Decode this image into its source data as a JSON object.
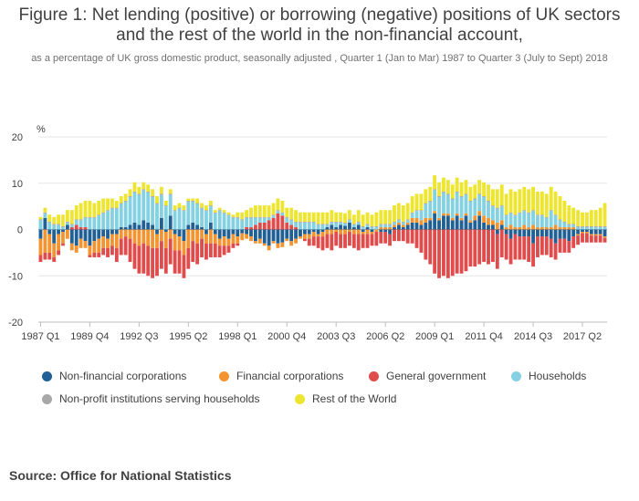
{
  "title": "Figure 1: Net lending (positive) or borrowing (negative) positions of UK sectors and the rest of the world in the non-financial account,",
  "subtitle": "as a percentage of UK gross domestic product, seasonally adjusted , Quarter 1 (Jan to Mar) 1987 to Quarter 3 (July to Sept) 2018",
  "source": "Source: Office for National Statistics",
  "chart_data": {
    "type": "bar",
    "stacked": true,
    "ylabel": "%",
    "ylim": [
      -20,
      20
    ],
    "yticks": [
      20,
      10,
      0,
      -10,
      -20
    ],
    "grid": true,
    "legend_position": "bottom",
    "xticks": [
      "1987 Q1",
      "1989 Q4",
      "1992 Q3",
      "1995 Q2",
      "1998 Q1",
      "2000 Q4",
      "2003 Q3",
      "2006 Q2",
      "2009 Q1",
      "2011 Q4",
      "2014 Q3",
      "2017 Q2"
    ],
    "categories": [
      "1987 Q1",
      "1987 Q2",
      "1987 Q3",
      "1987 Q4",
      "1988 Q1",
      "1988 Q2",
      "1988 Q3",
      "1988 Q4",
      "1989 Q1",
      "1989 Q2",
      "1989 Q3",
      "1989 Q4",
      "1990 Q1",
      "1990 Q2",
      "1990 Q3",
      "1990 Q4",
      "1991 Q1",
      "1991 Q2",
      "1991 Q3",
      "1991 Q4",
      "1992 Q1",
      "1992 Q2",
      "1992 Q3",
      "1992 Q4",
      "1993 Q1",
      "1993 Q2",
      "1993 Q3",
      "1993 Q4",
      "1994 Q1",
      "1994 Q2",
      "1994 Q3",
      "1994 Q4",
      "1995 Q1",
      "1995 Q2",
      "1995 Q3",
      "1995 Q4",
      "1996 Q1",
      "1996 Q2",
      "1996 Q3",
      "1996 Q4",
      "1997 Q1",
      "1997 Q2",
      "1997 Q3",
      "1997 Q4",
      "1998 Q1",
      "1998 Q2",
      "1998 Q3",
      "1998 Q4",
      "1999 Q1",
      "1999 Q2",
      "1999 Q3",
      "1999 Q4",
      "2000 Q1",
      "2000 Q2",
      "2000 Q3",
      "2000 Q4",
      "2001 Q1",
      "2001 Q2",
      "2001 Q3",
      "2001 Q4",
      "2002 Q1",
      "2002 Q2",
      "2002 Q3",
      "2002 Q4",
      "2003 Q1",
      "2003 Q2",
      "2003 Q3",
      "2003 Q4",
      "2004 Q1",
      "2004 Q2",
      "2004 Q3",
      "2004 Q4",
      "2005 Q1",
      "2005 Q2",
      "2005 Q3",
      "2005 Q4",
      "2006 Q1",
      "2006 Q2",
      "2006 Q3",
      "2006 Q4",
      "2007 Q1",
      "2007 Q2",
      "2007 Q3",
      "2007 Q4",
      "2008 Q1",
      "2008 Q2",
      "2008 Q3",
      "2008 Q4",
      "2009 Q1",
      "2009 Q2",
      "2009 Q3",
      "2009 Q4",
      "2010 Q1",
      "2010 Q2",
      "2010 Q3",
      "2010 Q4",
      "2011 Q1",
      "2011 Q2",
      "2011 Q3",
      "2011 Q4",
      "2012 Q1",
      "2012 Q2",
      "2012 Q3",
      "2012 Q4",
      "2013 Q1",
      "2013 Q2",
      "2013 Q3",
      "2013 Q4",
      "2014 Q1",
      "2014 Q2",
      "2014 Q3",
      "2014 Q4",
      "2015 Q1",
      "2015 Q2",
      "2015 Q3",
      "2015 Q4",
      "2016 Q1",
      "2016 Q2",
      "2016 Q3",
      "2016 Q4",
      "2017 Q1",
      "2017 Q2",
      "2017 Q3",
      "2017 Q4",
      "2018 Q1",
      "2018 Q2",
      "2018 Q3"
    ],
    "series": [
      {
        "name": "Non-financial corporations",
        "color": "#206095",
        "values": [
          -2.0,
          2.5,
          -1.0,
          -3.0,
          -1.0,
          -0.5,
          1.0,
          -3.0,
          -3.5,
          -2.0,
          -2.5,
          -3.5,
          -2.5,
          -2.0,
          -1.5,
          -2.0,
          -1.0,
          -1.0,
          0.5,
          0.5,
          1.0,
          1.5,
          1.0,
          2.0,
          1.5,
          1.0,
          -1.0,
          2.5,
          -0.5,
          3.0,
          -1.0,
          -1.5,
          -2.5,
          1.0,
          1.5,
          1.0,
          0.5,
          -1.0,
          1.5,
          -1.0,
          -2.0,
          -1.5,
          -2.0,
          -1.0,
          -1.5,
          -0.8,
          -1.0,
          -1.5,
          -2.5,
          -2.0,
          -3.0,
          -3.5,
          -2.5,
          -3.0,
          -2.8,
          -2.0,
          -2.5,
          -2.0,
          -1.5,
          -1.0,
          -1.0,
          -0.5,
          -1.0,
          -0.5,
          0.5,
          1.0,
          0.5,
          1.0,
          0.8,
          1.5,
          0.5,
          1.0,
          -0.5,
          0.5,
          -0.5,
          0.0,
          -0.5,
          -0.5,
          -1.0,
          0.5,
          1.0,
          0.5,
          1.0,
          1.5,
          1.5,
          1.0,
          1.5,
          2.0,
          3.5,
          2.0,
          3.0,
          3.0,
          2.0,
          3.0,
          2.0,
          3.0,
          1.5,
          2.0,
          3.0,
          1.5,
          1.0,
          1.0,
          -1.0,
          1.0,
          -1.0,
          -2.0,
          -1.0,
          -1.5,
          -1.5,
          -1.5,
          -3.0,
          -1.5,
          -1.5,
          -1.5,
          -2.0,
          -3.0,
          -2.0,
          -2.0,
          -2.5,
          -1.5,
          -1.0,
          -0.5,
          -0.5,
          -1.0,
          -1.0,
          -1.0,
          -1.5
        ]
      },
      {
        "name": "Financial corporations",
        "color": "#f39431",
        "values": [
          -3.5,
          -5.0,
          -4.0,
          -3.0,
          -3.5,
          -2.5,
          -2.0,
          -1.5,
          -1.5,
          -2.0,
          -1.5,
          -2.0,
          -2.5,
          -3.0,
          -2.5,
          -2.0,
          -2.5,
          -3.0,
          -2.0,
          -1.5,
          -2.0,
          -3.0,
          -3.5,
          -3.0,
          -3.5,
          -4.0,
          -3.0,
          -2.5,
          -3.5,
          -2.0,
          -3.5,
          -3.0,
          -3.0,
          -4.0,
          -2.5,
          -3.0,
          -2.0,
          -2.0,
          -3.0,
          -2.0,
          -1.5,
          -2.0,
          -1.5,
          -2.0,
          -1.5,
          -1.5,
          -1.0,
          -1.0,
          -0.5,
          -1.0,
          -0.5,
          -1.0,
          -0.5,
          -1.0,
          -1.0,
          -0.5,
          -1.0,
          -1.0,
          -0.5,
          -1.0,
          -1.0,
          -1.0,
          -0.5,
          -1.0,
          -1.0,
          -1.0,
          -0.5,
          -1.0,
          -1.0,
          -0.5,
          -1.0,
          -1.0,
          -0.5,
          -1.0,
          -0.5,
          -0.5,
          0.5,
          0.5,
          0.5,
          0.5,
          0.5,
          0.5,
          0.5,
          1.0,
          1.0,
          1.0,
          1.0,
          0.5,
          0.5,
          0.5,
          0.5,
          0.5,
          0.5,
          0.5,
          0.5,
          0.5,
          0.5,
          1.0,
          1.0,
          1.5,
          1.5,
          1.0,
          1.5,
          1.0,
          0.5,
          1.0,
          0.5,
          0.5,
          1.0,
          0.5,
          1.0,
          0.5,
          0.5,
          0.5,
          0.5,
          1.0,
          0.5,
          0.5,
          0.5,
          0.5,
          -0.3,
          -0.3,
          -0.3,
          -0.3,
          -0.3,
          -0.3,
          -0.3
        ]
      },
      {
        "name": "General government",
        "color": "#e04b4b",
        "values": [
          -1.5,
          -1.5,
          -1.5,
          -1.0,
          -1.0,
          -0.5,
          0.0,
          0.5,
          1.0,
          0.5,
          0.5,
          -0.5,
          -1.0,
          -1.0,
          -1.5,
          -2.0,
          -2.0,
          -3.0,
          -3.5,
          -4.0,
          -5.0,
          -5.5,
          -6.0,
          -6.5,
          -6.5,
          -6.5,
          -6.0,
          -6.0,
          -5.5,
          -5.5,
          -5.0,
          -5.0,
          -5.0,
          -4.5,
          -4.5,
          -4.5,
          -4.0,
          -3.5,
          -3.0,
          -3.0,
          -2.5,
          -2.0,
          -1.5,
          -1.0,
          -0.5,
          0.0,
          0.5,
          0.5,
          1.0,
          1.5,
          1.5,
          2.0,
          2.5,
          3.5,
          3.0,
          1.5,
          1.0,
          0.5,
          0.0,
          -0.5,
          -1.5,
          -2.0,
          -2.5,
          -3.0,
          -3.0,
          -3.5,
          -3.0,
          -3.0,
          -3.0,
          -3.0,
          -3.0,
          -3.5,
          -3.0,
          -3.0,
          -2.5,
          -3.0,
          -2.5,
          -2.5,
          -2.5,
          -2.5,
          -2.5,
          -2.5,
          -3.0,
          -3.0,
          -4.0,
          -5.0,
          -6.5,
          -7.5,
          -9.5,
          -10.5,
          -10.0,
          -10.5,
          -10.0,
          -9.5,
          -9.5,
          -9.0,
          -8.0,
          -8.0,
          -7.5,
          -7.0,
          -7.5,
          -7.0,
          -7.5,
          -6.0,
          -5.5,
          -5.5,
          -5.5,
          -5.0,
          -5.0,
          -5.5,
          -5.0,
          -4.5,
          -4.0,
          -4.0,
          -4.0,
          -3.5,
          -3.0,
          -3.0,
          -2.5,
          -2.5,
          -2.0,
          -2.0,
          -2.0,
          -1.5,
          -1.5,
          -1.5,
          -1.0
        ]
      },
      {
        "name": "Households",
        "color": "#84d1e2",
        "values": [
          2.0,
          1.0,
          1.5,
          1.0,
          1.0,
          0.5,
          0.5,
          0.5,
          1.0,
          1.5,
          2.0,
          2.5,
          2.5,
          3.0,
          3.5,
          4.0,
          4.5,
          4.5,
          5.0,
          5.5,
          6.0,
          6.5,
          6.5,
          6.5,
          6.5,
          6.0,
          5.5,
          5.0,
          5.0,
          4.5,
          4.0,
          4.5,
          4.0,
          5.0,
          4.5,
          4.5,
          4.0,
          4.0,
          3.5,
          3.5,
          4.0,
          3.5,
          3.0,
          2.5,
          2.5,
          2.0,
          2.0,
          2.0,
          1.5,
          1.0,
          1.0,
          0.5,
          0.5,
          0.5,
          0.5,
          1.0,
          1.0,
          1.0,
          1.5,
          1.5,
          1.5,
          1.5,
          1.0,
          1.0,
          0.5,
          0.5,
          1.0,
          0.5,
          0.5,
          0.5,
          0.5,
          0.5,
          0.5,
          0.5,
          0.5,
          0.5,
          0.5,
          0.5,
          0.5,
          0.5,
          0.5,
          0.5,
          0.5,
          1.0,
          1.5,
          2.0,
          3.0,
          3.5,
          4.5,
          4.5,
          4.5,
          4.0,
          4.0,
          4.5,
          4.5,
          4.0,
          4.0,
          3.5,
          3.5,
          4.0,
          3.5,
          3.0,
          3.0,
          3.0,
          2.5,
          2.5,
          2.5,
          3.0,
          3.0,
          3.0,
          3.0,
          2.5,
          2.5,
          2.0,
          3.5,
          2.0,
          1.5,
          1.0,
          0.5,
          0.5,
          0.5,
          0.5,
          0.5,
          0.5,
          0.5,
          0.5,
          0.5
        ]
      },
      {
        "name": "Non-profit institutions serving households",
        "color": "#a8a8a8",
        "values": [
          0.2,
          0.2,
          0.2,
          0.2,
          0.2,
          0.2,
          0.2,
          0.2,
          0.2,
          0.2,
          0.2,
          0.2,
          0.2,
          0.2,
          0.2,
          0.2,
          0.2,
          0.2,
          0.2,
          0.2,
          0.2,
          0.2,
          0.2,
          0.2,
          0.2,
          0.2,
          0.2,
          0.2,
          0.2,
          0.2,
          0.2,
          0.2,
          0.2,
          0.2,
          0.2,
          0.2,
          0.2,
          0.2,
          0.2,
          0.2,
          0.2,
          0.2,
          0.2,
          0.2,
          0.2,
          0.2,
          0.2,
          0.2,
          0.2,
          0.2,
          0.2,
          0.2,
          0.2,
          0.2,
          0.2,
          0.2,
          0.2,
          0.2,
          0.2,
          0.2,
          0.2,
          0.2,
          0.2,
          0.2,
          0.2,
          0.2,
          0.2,
          0.2,
          0.2,
          0.2,
          0.2,
          0.2,
          0.2,
          0.2,
          0.2,
          0.2,
          0.2,
          0.2,
          0.2,
          0.2,
          0.2,
          0.2,
          0.2,
          0.2,
          0.2,
          0.2,
          0.2,
          0.2,
          0.2,
          0.2,
          0.2,
          0.2,
          0.2,
          0.2,
          0.2,
          0.2,
          0.2,
          0.2,
          0.2,
          0.2,
          0.2,
          0.2,
          0.2,
          0.2,
          0.2,
          0.2,
          0.2,
          0.2,
          0.2,
          0.2,
          0.2,
          0.2,
          0.2,
          0.2,
          0.2,
          0.2,
          0.2,
          0.2,
          0.2,
          0.2,
          0.2,
          0.2,
          0.2,
          0.2,
          0.2,
          0.2,
          0.2
        ]
      },
      {
        "name": "Rest of the World",
        "color": "#ede52f",
        "values": [
          0.5,
          1.0,
          1.5,
          1.5,
          2.0,
          2.5,
          2.5,
          3.0,
          3.0,
          3.5,
          3.5,
          3.5,
          3.0,
          3.0,
          3.0,
          2.5,
          2.0,
          1.5,
          1.5,
          1.5,
          1.5,
          2.0,
          1.5,
          1.5,
          1.5,
          1.5,
          1.5,
          1.5,
          1.0,
          1.0,
          1.0,
          1.0,
          1.0,
          0.5,
          0.5,
          1.0,
          1.0,
          1.0,
          1.0,
          0.5,
          0.5,
          0.5,
          0.5,
          0.5,
          1.0,
          1.5,
          1.5,
          2.0,
          2.5,
          2.5,
          2.5,
          2.5,
          2.5,
          2.5,
          2.5,
          2.0,
          2.5,
          2.5,
          2.0,
          2.0,
          2.0,
          2.0,
          2.5,
          2.5,
          2.5,
          2.5,
          2.0,
          2.0,
          2.0,
          2.0,
          2.0,
          2.5,
          2.5,
          2.5,
          2.5,
          3.0,
          3.0,
          3.0,
          3.0,
          3.5,
          3.5,
          3.5,
          3.5,
          3.5,
          3.5,
          3.5,
          3.0,
          3.0,
          3.0,
          3.0,
          3.0,
          3.0,
          3.0,
          3.0,
          3.0,
          3.0,
          3.0,
          3.0,
          3.0,
          3.0,
          3.5,
          3.5,
          4.0,
          4.5,
          4.5,
          5.0,
          5.0,
          5.0,
          5.0,
          5.0,
          5.0,
          5.0,
          5.0,
          5.0,
          5.0,
          5.0,
          5.0,
          4.5,
          4.0,
          3.5,
          3.5,
          3.0,
          3.0,
          3.5,
          3.5,
          4.0,
          5.0
        ]
      }
    ]
  }
}
